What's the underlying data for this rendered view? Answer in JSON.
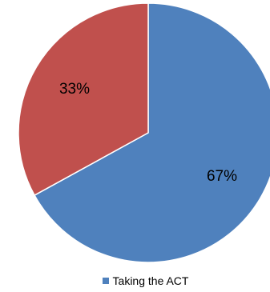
{
  "chart_data": {
    "type": "pie",
    "categories": [
      "Taking the ACT",
      ""
    ],
    "values": [
      67,
      33
    ],
    "value_labels": [
      "67%",
      "33%"
    ],
    "colors": [
      "#4F81BD",
      "#C0504D"
    ],
    "start_angle": "12 o'clock",
    "direction": "clockwise",
    "legend": {
      "position": "bottom",
      "items": [
        {
          "label": "Taking the ACT",
          "color": "#4F81BD"
        }
      ]
    }
  }
}
